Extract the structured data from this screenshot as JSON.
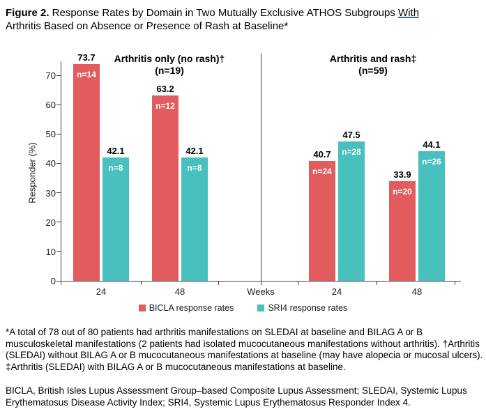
{
  "figure": {
    "label": "Figure 2.",
    "title_before_underline": " Response Rates by Domain in Two Mutually Exclusive ATHOS Subgroups ",
    "title_underlined": "With",
    "title_line2": "Arthritis Based on Absence or Presence of Rash at Baseline*"
  },
  "chart_data": {
    "type": "bar",
    "ylabel": "Responder (%)",
    "xlabel": "Weeks",
    "ylim": [
      0,
      75
    ],
    "yticks": [
      0,
      10,
      20,
      30,
      40,
      50,
      60,
      70
    ],
    "grid": "off",
    "legend_position": "bottom-center",
    "panels": [
      {
        "title": "Arthritis only (no rash)†",
        "subtitle": "(n=19)",
        "categories": [
          "24",
          "48"
        ],
        "series": [
          {
            "name": "BICLA response rates",
            "values": [
              73.7,
              63.2
            ],
            "n_labels": [
              "n=14",
              "n=12"
            ]
          },
          {
            "name": "SRI4 response rates",
            "values": [
              42.1,
              42.1
            ],
            "n_labels": [
              "n=8",
              "n=8"
            ]
          }
        ]
      },
      {
        "title": "Arthritis and rash‡",
        "subtitle": "(n=59)",
        "categories": [
          "24",
          "48"
        ],
        "series": [
          {
            "name": "BICLA response rates",
            "values": [
              40.7,
              33.9
            ],
            "n_labels": [
              "n=24",
              "n=20"
            ]
          },
          {
            "name": "SRI4 response rates",
            "values": [
              47.5,
              44.1
            ],
            "n_labels": [
              "n=28",
              "n=26"
            ]
          }
        ]
      }
    ],
    "legend": [
      {
        "label": "BICLA response rates",
        "color": "#E25C5E"
      },
      {
        "label": "SRI4 response rates",
        "color": "#47C0BE"
      }
    ],
    "colors": {
      "bicla": "#E25C5E",
      "sri4": "#47C0BE",
      "axis": "#404040",
      "underline": "#2E75B6"
    }
  },
  "footnote": "*A total of 78 out of 80 patients had arthritis manifestations on SLEDAI at baseline and BILAG A or B musculoskeletal manifestations (2 patients had isolated mucocutaneous manifestations without arthritis). †Arthritis (SLEDAI) without BILAG A or B mucocutaneous manifestations at baseline (may have alopecia or mucosal ulcers). ‡Arthritis (SLEDAI) with BILAG A or B mucocutaneous manifestations at baseline.",
  "abbreviations": "BICLA, British Isles Lupus Assessment Group–based Composite Lupus Assessment; SLEDAI, Systemic Lupus Erythematosus Disease Activity Index; SRI4, Systemic Lupus Erythematosus Responder Index 4."
}
